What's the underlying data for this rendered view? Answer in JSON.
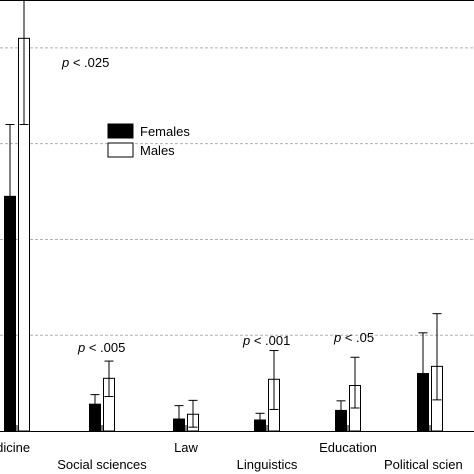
{
  "chart_data": {
    "type": "bar",
    "categories": [
      "Medicine",
      "Social sciences",
      "Law",
      "Linguistics",
      "Education",
      "Political sciences"
    ],
    "visible_category_labels": [
      "ledicine",
      "Social sciences",
      "Law",
      "Linguistics",
      "Education",
      "Political scien"
    ],
    "series": [
      {
        "name": "Females",
        "color": "#000000",
        "values": [
          49,
          5.6,
          2.5,
          2.3,
          4.3,
          12
        ],
        "error_lower": [
          34,
          3.6,
          0.6,
          1.3,
          2.3,
          2
        ],
        "error_upper": [
          64,
          7.6,
          5.3,
          3.7,
          6.3,
          20.5
        ]
      },
      {
        "name": "Males",
        "color": "#ffffff",
        "values": [
          82,
          11,
          3.5,
          10.8,
          9.5,
          13.5
        ],
        "error_lower": [
          64,
          7.2,
          0.8,
          4.5,
          4.8,
          6.5
        ],
        "error_upper": [
          95,
          14.6,
          6.4,
          16.8,
          15.4,
          24.5
        ]
      }
    ],
    "annotations": [
      {
        "category": "Medicine",
        "p_symbol": "p",
        "comparison": "< .025"
      },
      {
        "category": "Social sciences",
        "p_symbol": "p",
        "comparison": "< .005"
      },
      {
        "category": "Linguistics",
        "p_symbol": "p",
        "comparison": "< .001"
      },
      {
        "category": "Education",
        "p_symbol": "p",
        "comparison": "< .05"
      }
    ],
    "legend": {
      "position": "upper-left",
      "entries": [
        "Females",
        "Males"
      ]
    },
    "ylim": [
      0,
      90
    ],
    "gridlines": [
      20,
      40,
      60,
      80
    ],
    "grid": true,
    "title": "",
    "xlabel": "",
    "ylabel": ""
  }
}
